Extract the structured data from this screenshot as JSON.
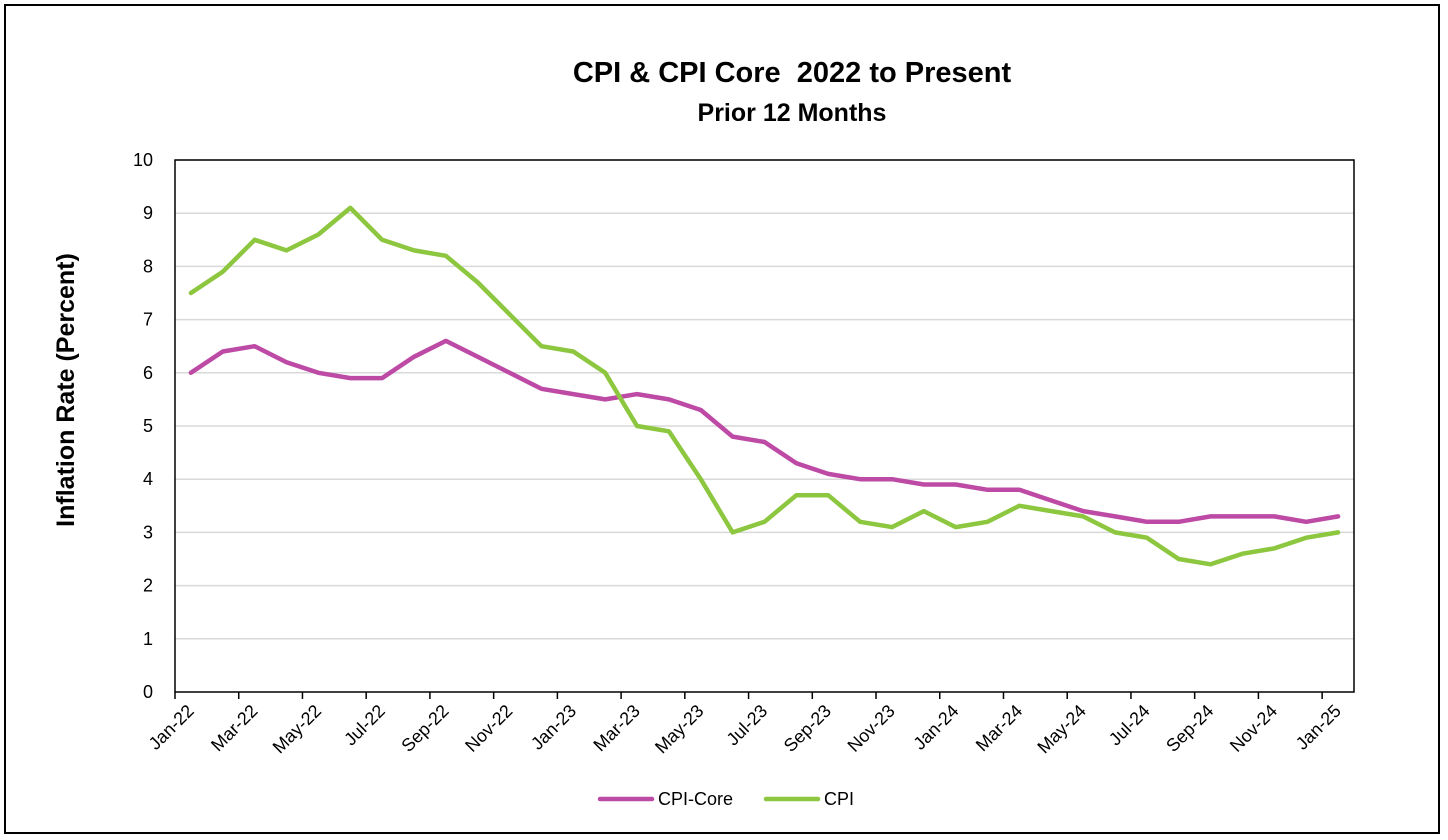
{
  "chart_data": {
    "type": "line",
    "title": "CPI & CPI Core  2022 to Present",
    "subtitle": "Prior 12 Months",
    "xlabel": "",
    "ylabel": "Inflation Rate (Percent)",
    "ylim": [
      0,
      10
    ],
    "yticks": [
      0,
      1,
      2,
      3,
      4,
      5,
      6,
      7,
      8,
      9,
      10
    ],
    "grid": "horizontal",
    "legend_position": "bottom",
    "categories": [
      "Jan-22",
      "Feb-22",
      "Mar-22",
      "Apr-22",
      "May-22",
      "Jun-22",
      "Jul-22",
      "Aug-22",
      "Sep-22",
      "Oct-22",
      "Nov-22",
      "Dec-22",
      "Jan-23",
      "Feb-23",
      "Mar-23",
      "Apr-23",
      "May-23",
      "Jun-23",
      "Jul-23",
      "Aug-23",
      "Sep-23",
      "Oct-23",
      "Nov-23",
      "Dec-23",
      "Jan-24",
      "Feb-24",
      "Mar-24",
      "Apr-24",
      "May-24",
      "Jun-24",
      "Jul-24",
      "Aug-24",
      "Sep-24",
      "Oct-24",
      "Nov-24",
      "Dec-24",
      "Jan-25"
    ],
    "tick_labels": [
      "Jan-22",
      "Mar-22",
      "May-22",
      "Jul-22",
      "Sep-22",
      "Nov-22",
      "Jan-23",
      "Mar-23",
      "May-23",
      "Jul-23",
      "Sep-23",
      "Nov-23",
      "Jan-24",
      "Mar-24",
      "May-24",
      "Jul-24",
      "Sep-24",
      "Nov-24",
      "Jan-25"
    ],
    "series": [
      {
        "name": "CPI-Core",
        "color": "#BD4AA5",
        "values": [
          6.0,
          6.4,
          6.5,
          6.2,
          6.0,
          5.9,
          5.9,
          6.3,
          6.6,
          6.3,
          6.0,
          5.7,
          5.6,
          5.5,
          5.6,
          5.5,
          5.3,
          4.8,
          4.7,
          4.3,
          4.1,
          4.0,
          4.0,
          3.9,
          3.9,
          3.8,
          3.8,
          3.6,
          3.4,
          3.3,
          3.2,
          3.2,
          3.3,
          3.3,
          3.3,
          3.2,
          3.3
        ]
      },
      {
        "name": "CPI",
        "color": "#8DC63F",
        "values": [
          7.5,
          7.9,
          8.5,
          8.3,
          8.6,
          9.1,
          8.5,
          8.3,
          8.2,
          7.7,
          7.1,
          6.5,
          6.4,
          6.0,
          5.0,
          4.9,
          4.0,
          3.0,
          3.2,
          3.7,
          3.7,
          3.2,
          3.1,
          3.4,
          3.1,
          3.2,
          3.5,
          3.4,
          3.3,
          3.0,
          2.9,
          2.5,
          2.4,
          2.6,
          2.7,
          2.9,
          3.0
        ]
      }
    ]
  },
  "colors": {
    "gridline": "#D9D9D9",
    "axis": "#000000",
    "frame": "#000000"
  }
}
